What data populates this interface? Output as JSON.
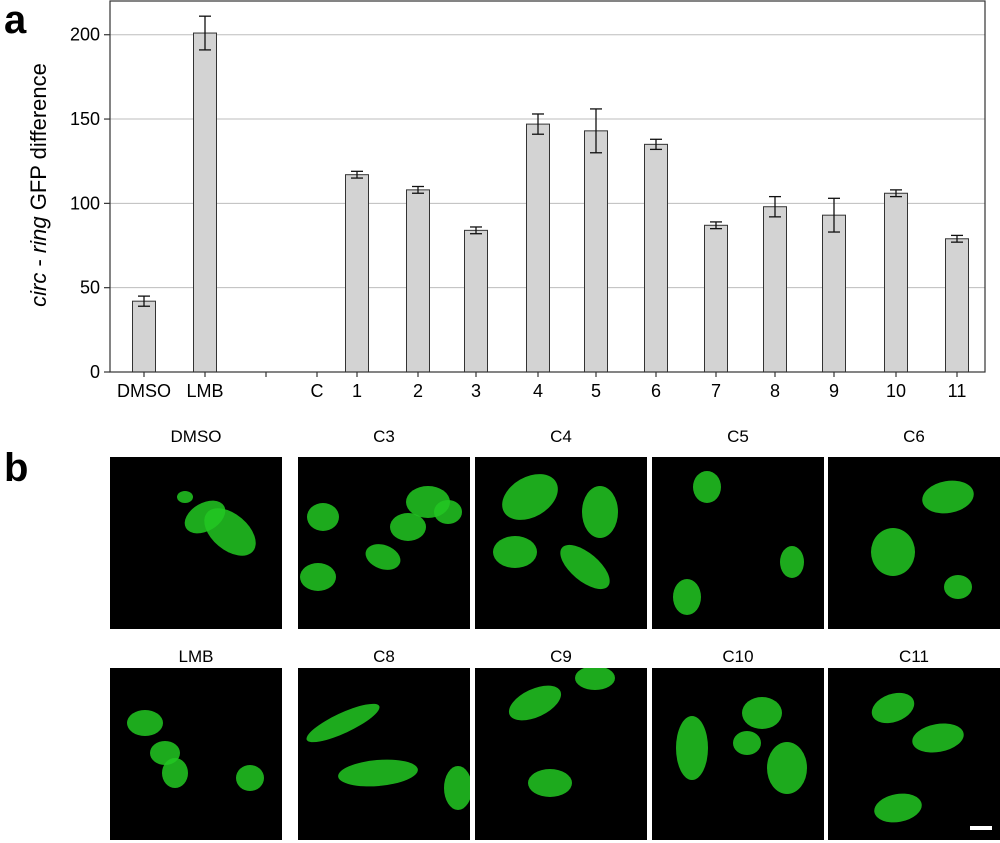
{
  "panel_a_label": "a",
  "panel_b_label": "b",
  "chart_data": {
    "type": "bar",
    "title": "",
    "xlabel": "",
    "ylabel_italic_1": "circ",
    "ylabel_sep": " - ",
    "ylabel_italic_2": "ring",
    "ylabel_rest": " GFP difference",
    "ylim": [
      0,
      220
    ],
    "yticks": [
      0,
      50,
      100,
      150,
      200
    ],
    "grid": true,
    "categories": [
      "DMSO",
      "LMB",
      "",
      "C",
      "1",
      "2",
      "3",
      "4",
      "5",
      "6",
      "7",
      "8",
      "9",
      "10",
      "11"
    ],
    "values": [
      42,
      201,
      null,
      null,
      117,
      108,
      84,
      147,
      143,
      135,
      87,
      98,
      93,
      106,
      79
    ],
    "errors": [
      3,
      10,
      null,
      null,
      2,
      2,
      2,
      6,
      13,
      3,
      2,
      6,
      10,
      2,
      2
    ],
    "bar_color": "#d3d3d3"
  },
  "panel_b": {
    "row1": [
      {
        "label": "DMSO"
      },
      {
        "label": "C3"
      },
      {
        "label": "C4"
      },
      {
        "label": "C5"
      },
      {
        "label": "C6"
      }
    ],
    "row2": [
      {
        "label": "LMB"
      },
      {
        "label": "C8"
      },
      {
        "label": "C9"
      },
      {
        "label": "C10"
      },
      {
        "label": "C11"
      }
    ]
  },
  "colors": {
    "fluorescence": "#22c822",
    "background": "#000000"
  }
}
